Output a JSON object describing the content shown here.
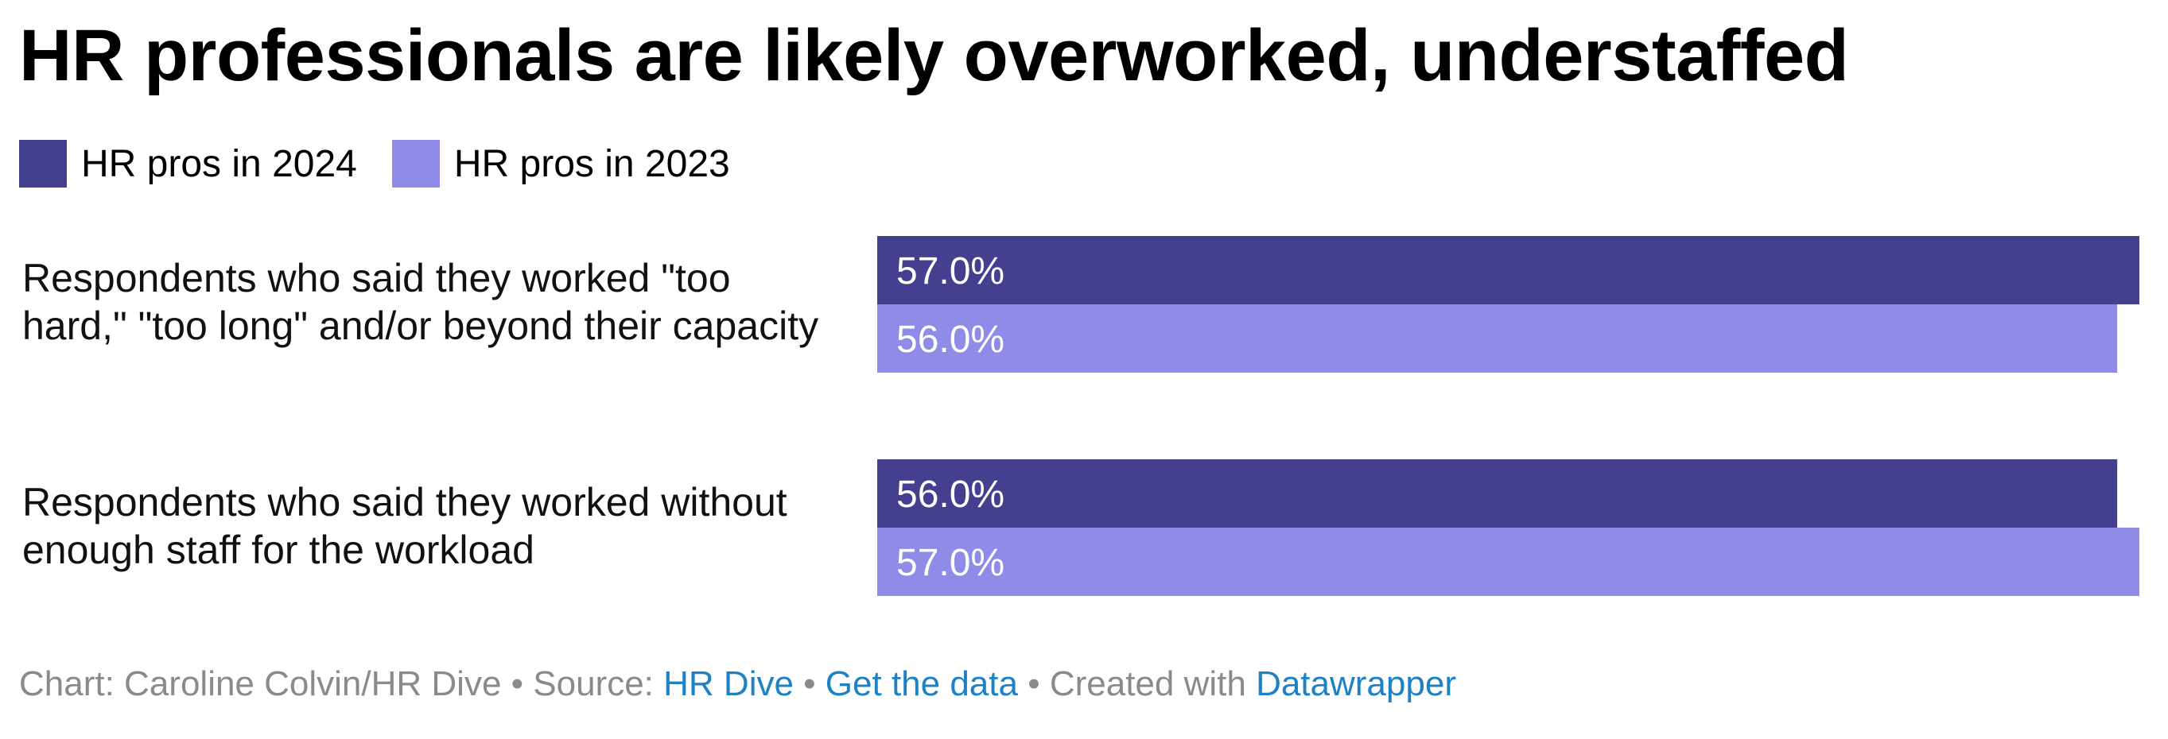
{
  "chart_data": {
    "type": "bar",
    "orientation": "horizontal",
    "title": "HR professionals are likely overworked, understaffed",
    "categories": [
      "Respondents who said they worked \"too hard,\" \"too long\" and/or beyond their capacity",
      "Respondents who said they worked without enough staff for the workload"
    ],
    "series": [
      {
        "name": "HR pros in 2024",
        "color": "#443f8f",
        "values": [
          57.0,
          56.0
        ],
        "labels": [
          "57.0%",
          "56.0%"
        ]
      },
      {
        "name": "HR pros in 2023",
        "color": "#8f8be6",
        "values": [
          56.0,
          57.0
        ],
        "labels": [
          "56.0%",
          "57.0%"
        ]
      }
    ],
    "xlim": [
      0,
      57
    ],
    "legend_position": "top-left",
    "grid": false
  },
  "footer": {
    "prefix": "Chart: Caroline Colvin/HR Dive • Source: ",
    "source_link": "HR Dive",
    "sep1": " • ",
    "data_link": "Get the data",
    "sep2": " • Created with ",
    "tool_link": "Datawrapper"
  }
}
